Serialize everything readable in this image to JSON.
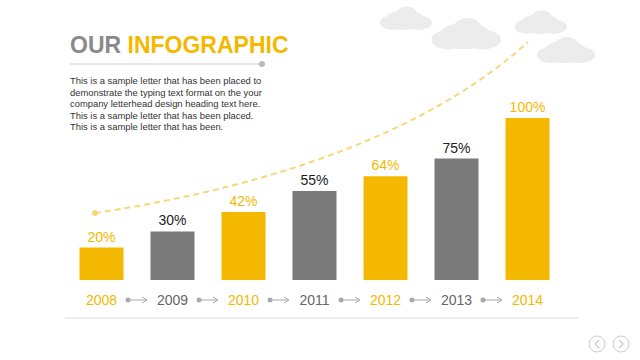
{
  "chart_data": {
    "type": "bar",
    "title": "OUR INFOGRAPHIC",
    "annotations": [
      "This is a sample letter that has been placed to demonstrate the typing text format on the your company letterhead design heading text here. This is a sample letter that has been placed. This is a sample letter that has been."
    ],
    "categories": [
      "2008",
      "2009",
      "2010",
      "2011",
      "2012",
      "2013",
      "2014"
    ],
    "values": [
      20,
      30,
      42,
      55,
      64,
      75,
      100
    ],
    "value_labels": [
      "20%",
      "30%",
      "42%",
      "55%",
      "64%",
      "75%",
      "100%"
    ],
    "colors": [
      "#f5b800",
      "#7a7a7a",
      "#f5b800",
      "#7a7a7a",
      "#f5b800",
      "#7a7a7a",
      "#f5b800"
    ],
    "ylim": [
      0,
      100
    ],
    "tick_labels": "x",
    "data_labels": true,
    "grid": false
  }
}
